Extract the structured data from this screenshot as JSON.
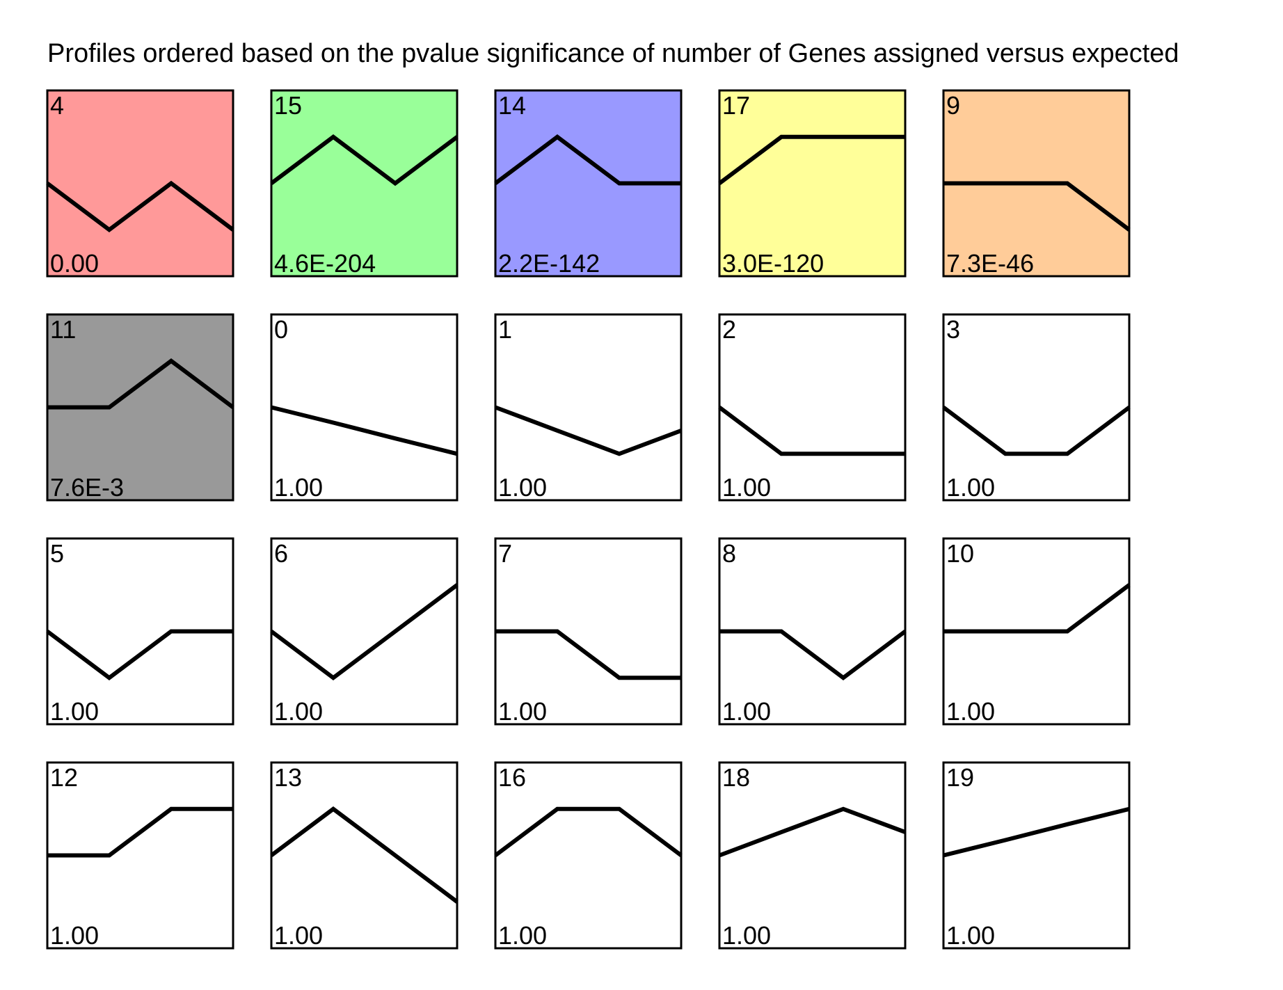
{
  "title": "Profiles ordered based on the pvalue significance of number of Genes assigned versus expected",
  "chart_data": {
    "type": "line",
    "title": "Profiles ordered based on the pvalue significance of number of Genes assigned versus expected",
    "ylim": [
      -2,
      2
    ],
    "x": [
      0,
      1,
      2,
      3
    ],
    "grid": false,
    "columns": 5,
    "profiles": [
      {
        "id": "4",
        "pvalue": "0.00",
        "color": "#ff9999",
        "values": [
          0,
          -1,
          0,
          -1
        ]
      },
      {
        "id": "15",
        "pvalue": "4.6E-204",
        "color": "#99ff99",
        "values": [
          0,
          1,
          0,
          1
        ]
      },
      {
        "id": "14",
        "pvalue": "2.2E-142",
        "color": "#9999ff",
        "values": [
          0,
          1,
          0,
          0
        ]
      },
      {
        "id": "17",
        "pvalue": "3.0E-120",
        "color": "#ffff99",
        "values": [
          0,
          1,
          1,
          1
        ]
      },
      {
        "id": "9",
        "pvalue": "7.3E-46",
        "color": "#ffcc99",
        "values": [
          0,
          0,
          0,
          -1
        ]
      },
      {
        "id": "11",
        "pvalue": "7.6E-3",
        "color": "#999999",
        "values": [
          0,
          0,
          1,
          0
        ]
      },
      {
        "id": "0",
        "pvalue": "1.00",
        "color": "#ffffff",
        "values": [
          0,
          -0.33,
          -0.67,
          -1
        ]
      },
      {
        "id": "1",
        "pvalue": "1.00",
        "color": "#ffffff",
        "values": [
          0,
          -0.5,
          -1,
          -0.5
        ]
      },
      {
        "id": "2",
        "pvalue": "1.00",
        "color": "#ffffff",
        "values": [
          0,
          -1,
          -1,
          -1
        ]
      },
      {
        "id": "3",
        "pvalue": "1.00",
        "color": "#ffffff",
        "values": [
          0,
          -1,
          -1,
          0
        ]
      },
      {
        "id": "5",
        "pvalue": "1.00",
        "color": "#ffffff",
        "values": [
          0,
          -1,
          0,
          0
        ]
      },
      {
        "id": "6",
        "pvalue": "1.00",
        "color": "#ffffff",
        "values": [
          0,
          -1,
          0,
          1
        ]
      },
      {
        "id": "7",
        "pvalue": "1.00",
        "color": "#ffffff",
        "values": [
          0,
          0,
          -1,
          -1
        ]
      },
      {
        "id": "8",
        "pvalue": "1.00",
        "color": "#ffffff",
        "values": [
          0,
          0,
          -1,
          0
        ]
      },
      {
        "id": "10",
        "pvalue": "1.00",
        "color": "#ffffff",
        "values": [
          0,
          0,
          0,
          1
        ]
      },
      {
        "id": "12",
        "pvalue": "1.00",
        "color": "#ffffff",
        "values": [
          0,
          0,
          1,
          1
        ]
      },
      {
        "id": "13",
        "pvalue": "1.00",
        "color": "#ffffff",
        "values": [
          0,
          1,
          0,
          -1
        ]
      },
      {
        "id": "16",
        "pvalue": "1.00",
        "color": "#ffffff",
        "values": [
          0,
          1,
          1,
          0
        ]
      },
      {
        "id": "18",
        "pvalue": "1.00",
        "color": "#ffffff",
        "values": [
          0,
          0.5,
          1,
          0.5
        ]
      },
      {
        "id": "19",
        "pvalue": "1.00",
        "color": "#ffffff",
        "values": [
          0,
          0.33,
          0.67,
          1
        ]
      }
    ]
  }
}
